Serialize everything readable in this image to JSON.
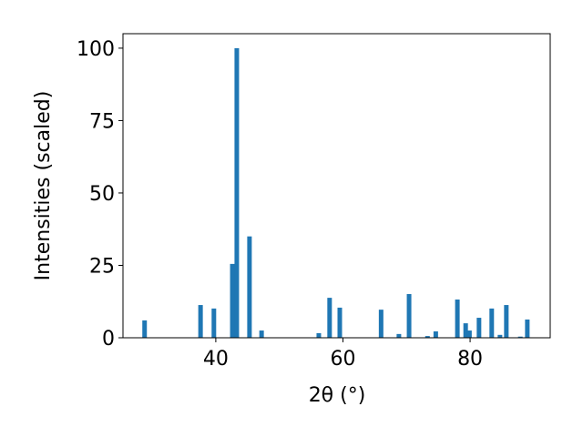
{
  "chart_data": {
    "type": "bar",
    "xlabel": "2θ (°)",
    "ylabel": "Intensities (scaled)",
    "x": [
      28.8,
      37.6,
      39.7,
      42.6,
      43.3,
      45.3,
      47.2,
      56.2,
      57.9,
      59.5,
      66.0,
      68.8,
      70.4,
      73.3,
      74.6,
      78.0,
      79.3,
      79.9,
      81.4,
      83.4,
      84.7,
      85.7,
      87.9,
      89.0
    ],
    "values": [
      6.0,
      11.3,
      10.1,
      25.5,
      100,
      35,
      2.5,
      1.6,
      13.8,
      10.4,
      9.7,
      1.3,
      15.1,
      0.6,
      2.2,
      13.2,
      5.0,
      2.5,
      6.9,
      10.1,
      1.0,
      11.3,
      0.4,
      6.3
    ],
    "color": "#1f77b4",
    "xlim": [
      25.4,
      92.6
    ],
    "ylim": [
      0,
      105
    ],
    "xticks": [
      40,
      60,
      80
    ],
    "yticks": [
      0,
      25,
      50,
      75,
      100
    ]
  }
}
